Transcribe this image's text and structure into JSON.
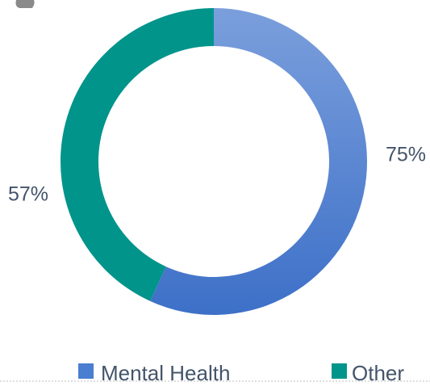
{
  "chart_data": {
    "type": "pie",
    "donut": true,
    "categories": [
      "Mental Health",
      "Other"
    ],
    "values": [
      75,
      57
    ],
    "value_labels": [
      "75%",
      "57%"
    ],
    "colors": [
      "#4a7ed0",
      "#00948b"
    ]
  }
}
